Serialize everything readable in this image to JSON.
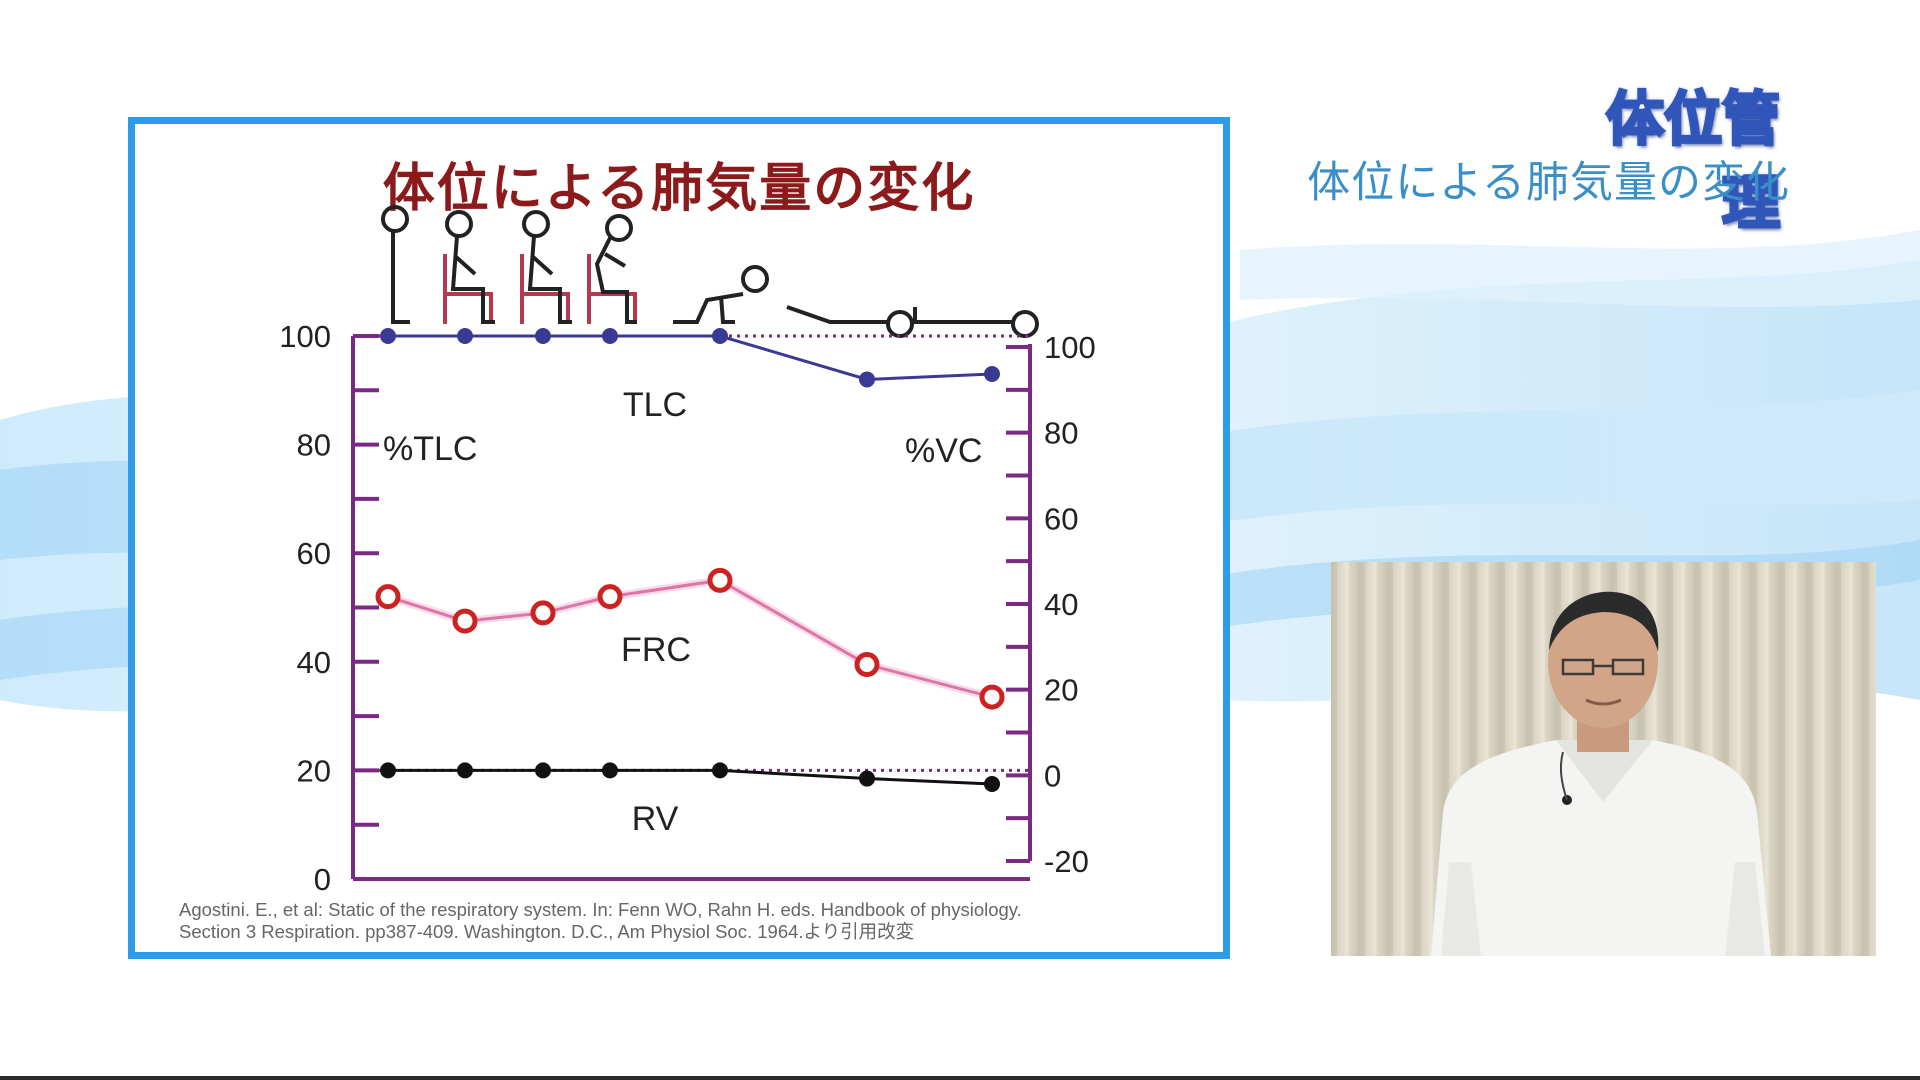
{
  "header": {
    "section_label": "体位管理",
    "subtitle": "体位による肺気量の変化"
  },
  "slide": {
    "title": "体位による肺気量の変化",
    "citation": [
      "Agostini. E., et al: Static of the respiratory system. In: Fenn WO, Rahn H. eds. Handbook of physiology.",
      "Section 3 Respiration. pp387-409. Washington. D.C., Am Physiol Soc. 1964.より引用改変"
    ]
  },
  "chart_data": {
    "type": "line",
    "left_axis": {
      "label": "%TLC",
      "range": [
        0,
        100
      ],
      "ticks": [
        "0",
        "20",
        "40",
        "60",
        "80",
        "100"
      ],
      "tick_values": [
        0,
        20,
        40,
        60,
        80,
        100
      ]
    },
    "right_axis": {
      "label": "%VC",
      "range": [
        -20,
        100
      ],
      "ticks": [
        "-20",
        "0",
        "20",
        "40",
        "60",
        "80",
        "100"
      ],
      "tick_values": [
        -20,
        0,
        20,
        40,
        60,
        80,
        100
      ]
    },
    "categories": [
      "standing",
      "sitting-upright",
      "sitting",
      "sitting-leaning",
      "prone-crawl",
      "head-down-supine",
      "supine"
    ],
    "category_icons": [
      "standing-figure-icon",
      "chair-sitting-figure-icon",
      "chair-sitting-figure-icon",
      "chair-leaning-figure-icon",
      "prone-figure-icon",
      "head-down-figure-icon",
      "supine-figure-icon"
    ],
    "series": [
      {
        "name": "TLC",
        "color": "#3a3a94",
        "marker": "filled",
        "values": [
          100,
          100,
          100,
          100,
          100,
          92,
          93
        ]
      },
      {
        "name": "FRC",
        "color": "#c8347a",
        "marker": "open-red",
        "values": [
          52,
          47.5,
          49,
          52,
          55,
          39.5,
          33.5
        ]
      },
      {
        "name": "RV",
        "color": "#111111",
        "marker": "filled",
        "values": [
          20,
          20,
          20,
          20,
          20,
          18.5,
          17.5
        ]
      }
    ],
    "reference_lines": [
      100,
      20
    ],
    "colors": {
      "axis": "#7a2a82",
      "frc_marker": "#cc2222",
      "chair": "#b63a4e"
    }
  },
  "video": {
    "icon": "presenter-video-icon"
  }
}
